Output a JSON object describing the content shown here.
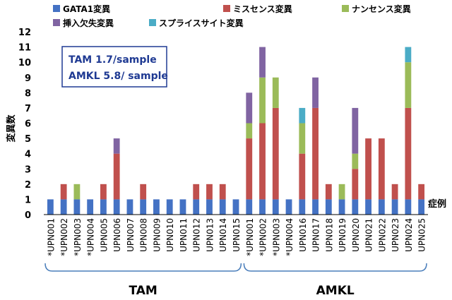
{
  "chart_data": {
    "type": "bar",
    "stacked": true,
    "ylabel": "変異数",
    "xlabel": "症例",
    "ylim": [
      0,
      12
    ],
    "yticks": [
      0,
      1,
      2,
      3,
      4,
      5,
      6,
      7,
      8,
      9,
      10,
      11,
      12
    ],
    "grid": false,
    "legend_position": "top",
    "categories": [
      "*UPN001",
      "*UPN002",
      "*UPN003",
      "*UPN004",
      "UPN005",
      "UPN006",
      "UPN007",
      "UPN008",
      "UPN009",
      "UPN010",
      "UPN011",
      "UPN012",
      "UPN013",
      "UPN014",
      "UPN015",
      "*UPN001",
      "*UPN002",
      "*UPN003",
      "*UPN004",
      "UPN016",
      "UPN017",
      "UPN018",
      "UPN019",
      "UPN020",
      "UPN021",
      "UPN022",
      "UPN023",
      "UPN024",
      "UPN025"
    ],
    "series": [
      {
        "name": "GATA1変異",
        "color": "#4472c4",
        "values": [
          1,
          1,
          1,
          1,
          1,
          1,
          1,
          1,
          1,
          1,
          1,
          1,
          1,
          1,
          1,
          1,
          1,
          1,
          1,
          1,
          1,
          1,
          1,
          1,
          1,
          1,
          1,
          1,
          1
        ]
      },
      {
        "name": "ミスセンス変異",
        "color": "#c0504d",
        "values": [
          0,
          1,
          0,
          0,
          1,
          3,
          0,
          1,
          0,
          0,
          0,
          1,
          1,
          1,
          0,
          4,
          5,
          6,
          0,
          3,
          6,
          1,
          0,
          2,
          4,
          4,
          1,
          6,
          1
        ]
      },
      {
        "name": "ナンセンス変異",
        "color": "#9bbb59",
        "values": [
          0,
          0,
          1,
          0,
          0,
          0,
          0,
          0,
          0,
          0,
          0,
          0,
          0,
          0,
          0,
          1,
          3,
          2,
          0,
          2,
          0,
          0,
          1,
          1,
          0,
          0,
          0,
          3,
          0
        ]
      },
      {
        "name": "挿入欠失変異",
        "color": "#8064a2",
        "values": [
          0,
          0,
          0,
          0,
          0,
          1,
          0,
          0,
          0,
          0,
          0,
          0,
          0,
          0,
          0,
          2,
          2,
          0,
          0,
          0,
          2,
          0,
          0,
          3,
          0,
          0,
          0,
          0,
          0
        ]
      },
      {
        "name": "スプライスサイト変異",
        "color": "#4bacc6",
        "values": [
          0,
          0,
          0,
          0,
          0,
          0,
          0,
          0,
          0,
          0,
          0,
          0,
          0,
          0,
          0,
          0,
          0,
          0,
          0,
          1,
          0,
          0,
          0,
          0,
          0,
          0,
          0,
          1,
          0
        ]
      }
    ],
    "groups": [
      {
        "label": "TAM",
        "start": 0,
        "end": 14
      },
      {
        "label": "AMKL",
        "start": 15,
        "end": 28
      }
    ],
    "annotation": {
      "line1": "TAM 1.7/sample",
      "line2": "AMKL 5.8/ sample"
    }
  }
}
